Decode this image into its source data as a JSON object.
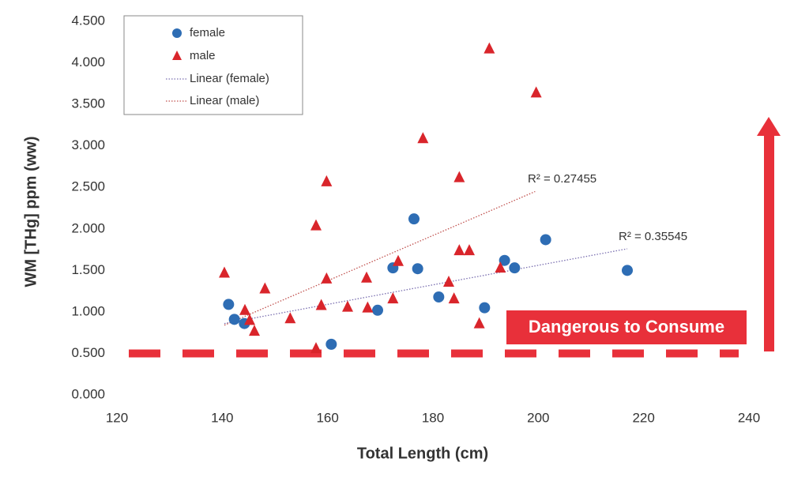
{
  "chart_data": {
    "type": "scatter",
    "xlabel": "Total Length (cm)",
    "ylabel": "WM [THg] ppm (ww)",
    "xlim": [
      120,
      240
    ],
    "ylim": [
      0,
      4.5
    ],
    "xticks": [
      120,
      140,
      160,
      180,
      200,
      220,
      240
    ],
    "yticks": [
      {
        "value": 0,
        "label": "0.000"
      },
      {
        "value": 0.5,
        "label": "0.500"
      },
      {
        "value": 1,
        "label": "1.000"
      },
      {
        "value": 1.5,
        "label": "1.500"
      },
      {
        "value": 2,
        "label": "2.000"
      },
      {
        "value": 2.5,
        "label": "2.500"
      },
      {
        "value": 3,
        "label": "3.000"
      },
      {
        "value": 3.5,
        "label": "3.500"
      },
      {
        "value": 4,
        "label": "4.000"
      },
      {
        "value": 4.5,
        "label": "4.500"
      }
    ],
    "series": [
      {
        "name": "female",
        "marker": "circle",
        "color": "#2e6db4",
        "x": [
          141.2,
          142.3,
          144.2,
          160.7,
          169.5,
          172.4,
          176.4,
          177.1,
          181.1,
          189.8,
          193.6,
          195.5,
          201.4,
          216.9
        ],
        "values": [
          1.09,
          0.91,
          0.86,
          0.61,
          1.02,
          1.53,
          2.12,
          1.52,
          1.18,
          1.05,
          1.62,
          1.53,
          1.87,
          1.5
        ]
      },
      {
        "name": "male",
        "marker": "triangle",
        "color": "#d9252b",
        "x": [
          140.4,
          144.3,
          145.2,
          146.1,
          148.1,
          152.9,
          157.8,
          157.8,
          158.8,
          159.8,
          159.8,
          163.8,
          167.4,
          167.6,
          172.4,
          173.4,
          178.1,
          183.0,
          184.0,
          185.0,
          185.0,
          186.9,
          188.8,
          190.7,
          192.8,
          199.6
        ],
        "values": [
          1.47,
          1.02,
          0.9,
          0.77,
          1.28,
          0.92,
          0.56,
          2.04,
          1.08,
          2.57,
          1.4,
          1.06,
          1.41,
          1.05,
          1.16,
          1.61,
          3.09,
          1.36,
          1.16,
          2.62,
          1.74,
          1.74,
          0.86,
          4.17,
          1.53,
          3.64
        ]
      }
    ],
    "trendlines": [
      {
        "name": "Linear (female)",
        "color": "#7a6fb0",
        "x": [
          140.4,
          216.9
        ],
        "values": [
          0.86,
          1.76
        ],
        "label": "R² = 0.35545"
      },
      {
        "name": "Linear (male)",
        "color": "#c0504d",
        "x": [
          140.4,
          199.4
        ],
        "values": [
          0.84,
          2.45
        ],
        "label": "R² = 0.27455"
      }
    ],
    "threshold": {
      "value": 0.5,
      "color": "#e8303a"
    },
    "annotation": "Dangerous to Consume"
  }
}
